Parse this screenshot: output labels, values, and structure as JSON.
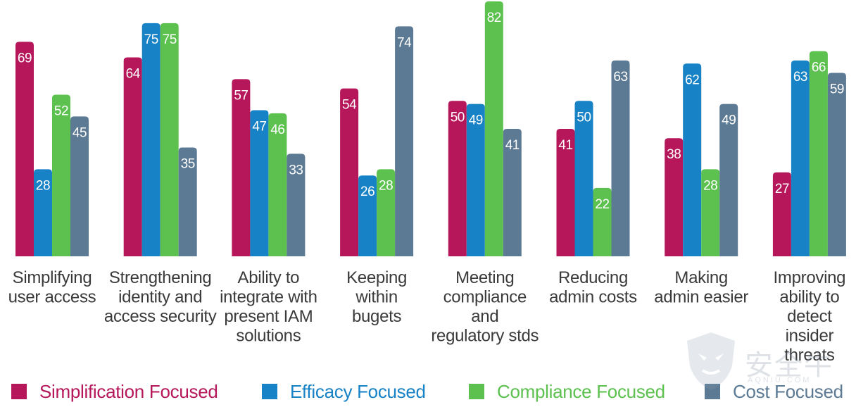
{
  "chart_data": {
    "type": "bar",
    "categories": [
      [
        "Simplifying",
        "user access"
      ],
      [
        "Strengthening",
        "identity and",
        "access security"
      ],
      [
        "Ability to",
        "integrate with",
        "present IAM",
        "solutions"
      ],
      [
        "Keeping",
        "within",
        "bugets"
      ],
      [
        "Meeting",
        "compliance",
        "and",
        "regulatory stds"
      ],
      [
        "Reducing",
        "admin costs"
      ],
      [
        "Making",
        "admin easier"
      ],
      [
        "Improving",
        "ability to",
        "detect",
        "insider",
        "threats"
      ]
    ],
    "series": [
      {
        "name": "Simplification Focused",
        "color": "#b5175a",
        "values": [
          69,
          64,
          57,
          54,
          50,
          41,
          38,
          27
        ]
      },
      {
        "name": "Efficacy Focused",
        "color": "#1782c5",
        "values": [
          28,
          75,
          47,
          26,
          49,
          50,
          62,
          63
        ]
      },
      {
        "name": "Compliance Focused",
        "color": "#5cc14f",
        "values": [
          52,
          75,
          46,
          28,
          82,
          22,
          28,
          66
        ]
      },
      {
        "name": "Cost Focused",
        "color": "#5c7a94",
        "values": [
          45,
          35,
          33,
          74,
          41,
          63,
          49,
          59
        ]
      }
    ],
    "ylim": [
      0,
      82
    ],
    "grid": false,
    "legend_position": "bottom"
  },
  "watermark": {
    "text": "安全牛",
    "subtext": "AQNIU.COM"
  }
}
